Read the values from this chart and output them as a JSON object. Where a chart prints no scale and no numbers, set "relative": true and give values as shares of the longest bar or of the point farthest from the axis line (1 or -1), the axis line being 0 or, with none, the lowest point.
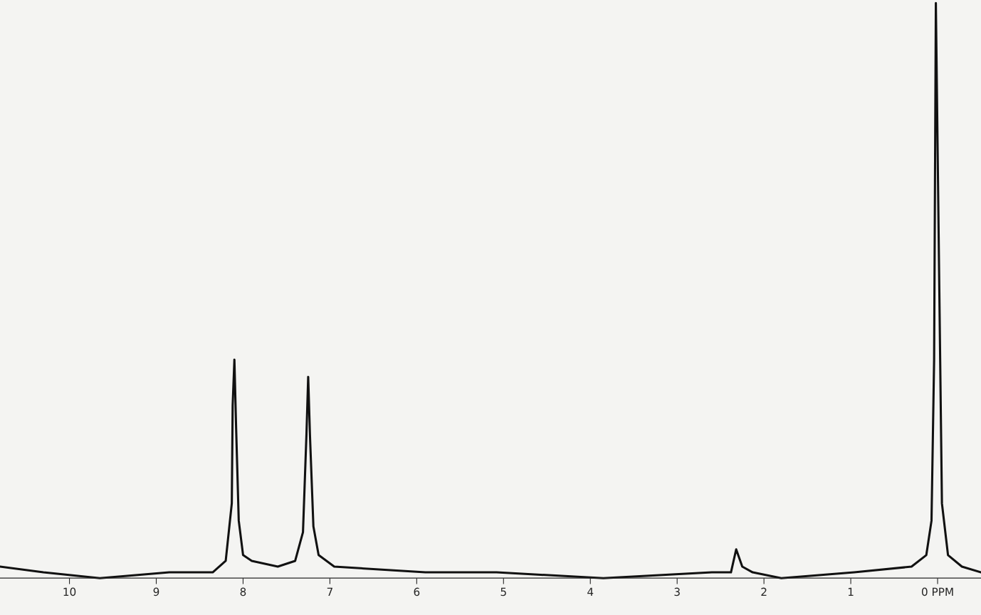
{
  "chart_data": {
    "type": "line",
    "relative": true,
    "x": [
      10.8,
      10.3,
      9.65,
      8.85,
      8.35,
      8.2,
      8.13,
      8.12,
      8.1,
      8.08,
      8.05,
      8.0,
      7.9,
      7.6,
      7.4,
      7.31,
      7.27,
      7.25,
      7.23,
      7.19,
      7.13,
      6.95,
      5.9,
      5.08,
      3.85,
      2.6,
      2.38,
      2.32,
      2.25,
      2.13,
      1.8,
      0.96,
      0.3,
      0.13,
      0.07,
      0.04,
      0.02,
      -0.02,
      -0.05,
      -0.12,
      -0.28,
      -0.5
    ],
    "series": [
      {
        "color": "#111111",
        "values": [
          0.02,
          0.01,
          0,
          0.01,
          0.01,
          0.03,
          0.13,
          0.3,
          0.38,
          0.26,
          0.1,
          0.04,
          0.03,
          0.02,
          0.03,
          0.08,
          0.25,
          0.35,
          0.25,
          0.09,
          0.04,
          0.02,
          0.01,
          0.01,
          0,
          0.01,
          0.01,
          0.05,
          0.02,
          0.01,
          0,
          0.01,
          0.02,
          0.04,
          0.1,
          0.38,
          1,
          0.5,
          0.13,
          0.04,
          0.02,
          0.01
        ]
      }
    ],
    "xlim": [
      10.8,
      -0.5
    ],
    "xticks": [
      10,
      9,
      8,
      7,
      6,
      5,
      4,
      3,
      2,
      1,
      {
        "value": 0,
        "label": "0 PPM"
      }
    ],
    "grid": false,
    "legend": false,
    "marker": "none",
    "line_style": "solid"
  }
}
